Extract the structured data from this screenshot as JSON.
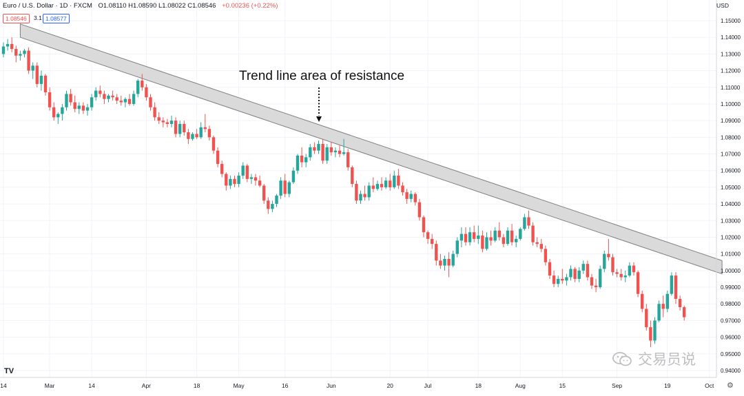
{
  "header": {
    "symbol": "Euro / U.S. Dollar · 1D · FXCM",
    "ohlc": "O1.08110 H1.08590 L1.08022 C1.08546",
    "change": "+0.00236 (+0.22%)",
    "sell_price": "1.08546",
    "spread": "3.1",
    "buy_price": "1.08577"
  },
  "currency": "USD",
  "watermark": "交易员说",
  "logo": "TV",
  "gear_icon": "gear-icon",
  "colors": {
    "up": "#26a69a",
    "down": "#ef5350",
    "band_fill": "#d3d3d3",
    "band_stroke": "#7f7f7f",
    "grid": "#f0f3fa",
    "text": "#131722"
  },
  "chart_data": {
    "type": "candlestick",
    "title": "Euro / U.S. Dollar · 1D · FXCM",
    "ylabel": "USD",
    "ylim": [
      0.935,
      1.16
    ],
    "y_ticks": [
      1.15,
      1.14,
      1.13,
      1.12,
      1.11,
      1.1,
      1.09,
      1.08,
      1.07,
      1.06,
      1.05,
      1.04,
      1.03,
      1.02,
      1.01,
      1.0,
      0.99,
      0.98,
      0.97,
      0.96,
      0.95,
      0.94
    ],
    "x_ticks": [
      {
        "label": "14",
        "day": 0
      },
      {
        "label": "Mar",
        "day": 11
      },
      {
        "label": "14",
        "day": 21
      },
      {
        "label": "Apr",
        "day": 34
      },
      {
        "label": "18",
        "day": 46
      },
      {
        "label": "May",
        "day": 56
      },
      {
        "label": "16",
        "day": 67
      },
      {
        "label": "Jun",
        "day": 78
      },
      {
        "label": "20",
        "day": 92
      },
      {
        "label": "Jul",
        "day": 101
      },
      {
        "label": "18",
        "day": 113
      },
      {
        "label": "Aug",
        "day": 123
      },
      {
        "label": "15",
        "day": 133
      },
      {
        "label": "Sep",
        "day": 146
      },
      {
        "label": "19",
        "day": 158
      },
      {
        "label": "Oct",
        "day": 168
      }
    ],
    "trend_band": {
      "label": "Trend line area of resistance",
      "start": {
        "day": 4,
        "upper": 1.148,
        "lower": 1.14
      },
      "end": {
        "day": 171,
        "upper": 1.006,
        "lower": 0.998
      }
    },
    "ohlc": [
      [
        1.13,
        1.137,
        1.128,
        1.1345
      ],
      [
        1.1345,
        1.139,
        1.132,
        1.136
      ],
      [
        1.136,
        1.14,
        1.131,
        1.133
      ],
      [
        1.133,
        1.135,
        1.125,
        1.129
      ],
      [
        1.129,
        1.132,
        1.126,
        1.13
      ],
      [
        1.13,
        1.133,
        1.128,
        1.132
      ],
      [
        1.132,
        1.134,
        1.118,
        1.12
      ],
      [
        1.12,
        1.125,
        1.115,
        1.123
      ],
      [
        1.123,
        1.125,
        1.11,
        1.112
      ],
      [
        1.112,
        1.12,
        1.108,
        1.117
      ],
      [
        1.117,
        1.118,
        1.105,
        1.107
      ],
      [
        1.107,
        1.11,
        1.096,
        1.098
      ],
      [
        1.098,
        1.101,
        1.09,
        1.092
      ],
      [
        1.092,
        1.095,
        1.088,
        1.094
      ],
      [
        1.094,
        1.1,
        1.09,
        1.098
      ],
      [
        1.098,
        1.108,
        1.096,
        1.106
      ],
      [
        1.106,
        1.109,
        1.099,
        1.101
      ],
      [
        1.101,
        1.105,
        1.095,
        1.097
      ],
      [
        1.097,
        1.101,
        1.094,
        1.099
      ],
      [
        1.099,
        1.101,
        1.094,
        1.096
      ],
      [
        1.096,
        1.1,
        1.093,
        1.098
      ],
      [
        1.098,
        1.106,
        1.096,
        1.104
      ],
      [
        1.104,
        1.11,
        1.102,
        1.108
      ],
      [
        1.108,
        1.111,
        1.104,
        1.106
      ],
      [
        1.106,
        1.108,
        1.1,
        1.103
      ],
      [
        1.103,
        1.106,
        1.101,
        1.105
      ],
      [
        1.105,
        1.108,
        1.102,
        1.104
      ],
      [
        1.104,
        1.106,
        1.1,
        1.102
      ],
      [
        1.102,
        1.105,
        1.099,
        1.101
      ],
      [
        1.101,
        1.104,
        1.098,
        1.103
      ],
      [
        1.103,
        1.106,
        1.099,
        1.1
      ],
      [
        1.1,
        1.108,
        1.099,
        1.106
      ],
      [
        1.106,
        1.115,
        1.104,
        1.114
      ],
      [
        1.114,
        1.118,
        1.108,
        1.11
      ],
      [
        1.11,
        1.112,
        1.102,
        1.104
      ],
      [
        1.104,
        1.106,
        1.096,
        1.098
      ],
      [
        1.098,
        1.101,
        1.09,
        1.092
      ],
      [
        1.092,
        1.095,
        1.088,
        1.09
      ],
      [
        1.09,
        1.092,
        1.086,
        1.089
      ],
      [
        1.089,
        1.091,
        1.086,
        1.088
      ],
      [
        1.088,
        1.093,
        1.086,
        1.09
      ],
      [
        1.09,
        1.092,
        1.08,
        1.082
      ],
      [
        1.082,
        1.09,
        1.08,
        1.088
      ],
      [
        1.088,
        1.09,
        1.081,
        1.083
      ],
      [
        1.083,
        1.085,
        1.076,
        1.079
      ],
      [
        1.079,
        1.083,
        1.078,
        1.082
      ],
      [
        1.082,
        1.085,
        1.079,
        1.08
      ],
      [
        1.08,
        1.089,
        1.079,
        1.086
      ],
      [
        1.086,
        1.094,
        1.083,
        1.085
      ],
      [
        1.085,
        1.087,
        1.078,
        1.08
      ],
      [
        1.08,
        1.081,
        1.07,
        1.072
      ],
      [
        1.072,
        1.074,
        1.062,
        1.064
      ],
      [
        1.064,
        1.066,
        1.056,
        1.058
      ],
      [
        1.058,
        1.059,
        1.048,
        1.051
      ],
      [
        1.051,
        1.057,
        1.049,
        1.055
      ],
      [
        1.055,
        1.057,
        1.05,
        1.052
      ],
      [
        1.052,
        1.059,
        1.05,
        1.057
      ],
      [
        1.057,
        1.065,
        1.055,
        1.063
      ],
      [
        1.063,
        1.064,
        1.053,
        1.055
      ],
      [
        1.055,
        1.058,
        1.052,
        1.056
      ],
      [
        1.056,
        1.058,
        1.051,
        1.054
      ],
      [
        1.054,
        1.057,
        1.05,
        1.051
      ],
      [
        1.051,
        1.052,
        1.04,
        1.042
      ],
      [
        1.042,
        1.044,
        1.034,
        1.037
      ],
      [
        1.037,
        1.042,
        1.035,
        1.04
      ],
      [
        1.04,
        1.046,
        1.038,
        1.045
      ],
      [
        1.045,
        1.056,
        1.043,
        1.054
      ],
      [
        1.054,
        1.058,
        1.044,
        1.046
      ],
      [
        1.046,
        1.054,
        1.044,
        1.053
      ],
      [
        1.053,
        1.062,
        1.052,
        1.06
      ],
      [
        1.06,
        1.07,
        1.058,
        1.069
      ],
      [
        1.069,
        1.074,
        1.062,
        1.065
      ],
      [
        1.065,
        1.07,
        1.062,
        1.068
      ],
      [
        1.068,
        1.076,
        1.066,
        1.074
      ],
      [
        1.074,
        1.077,
        1.07,
        1.072
      ],
      [
        1.072,
        1.078,
        1.07,
        1.076
      ],
      [
        1.076,
        1.079,
        1.064,
        1.066
      ],
      [
        1.066,
        1.076,
        1.064,
        1.074
      ],
      [
        1.074,
        1.077,
        1.069,
        1.071
      ],
      [
        1.071,
        1.074,
        1.068,
        1.072
      ],
      [
        1.072,
        1.075,
        1.068,
        1.07
      ],
      [
        1.07,
        1.079,
        1.069,
        1.071
      ],
      [
        1.071,
        1.073,
        1.06,
        1.062
      ],
      [
        1.062,
        1.063,
        1.05,
        1.052
      ],
      [
        1.052,
        1.054,
        1.04,
        1.042
      ],
      [
        1.042,
        1.048,
        1.04,
        1.046
      ],
      [
        1.046,
        1.051,
        1.042,
        1.044
      ],
      [
        1.044,
        1.053,
        1.042,
        1.051
      ],
      [
        1.051,
        1.056,
        1.047,
        1.049
      ],
      [
        1.049,
        1.054,
        1.048,
        1.052
      ],
      [
        1.052,
        1.056,
        1.048,
        1.05
      ],
      [
        1.05,
        1.056,
        1.049,
        1.054
      ],
      [
        1.054,
        1.058,
        1.048,
        1.05
      ],
      [
        1.05,
        1.06,
        1.049,
        1.057
      ],
      [
        1.057,
        1.061,
        1.049,
        1.051
      ],
      [
        1.051,
        1.053,
        1.045,
        1.047
      ],
      [
        1.047,
        1.049,
        1.04,
        1.043
      ],
      [
        1.043,
        1.048,
        1.041,
        1.046
      ],
      [
        1.046,
        1.047,
        1.039,
        1.041
      ],
      [
        1.041,
        1.043,
        1.03,
        1.032
      ],
      [
        1.032,
        1.033,
        1.02,
        1.023
      ],
      [
        1.023,
        1.024,
        1.016,
        1.019
      ],
      [
        1.019,
        1.022,
        1.013,
        1.016
      ],
      [
        1.016,
        1.018,
        1.003,
        1.006
      ],
      [
        1.006,
        1.01,
        1.001,
        1.003
      ],
      [
        1.003,
        1.009,
        1.0,
        1.007
      ],
      [
        1.007,
        1.011,
        0.996,
        1.003
      ],
      [
        1.003,
        1.012,
        1.002,
        1.01
      ],
      [
        1.01,
        1.02,
        1.008,
        1.018
      ],
      [
        1.018,
        1.026,
        1.014,
        1.022
      ],
      [
        1.022,
        1.026,
        1.015,
        1.017
      ],
      [
        1.017,
        1.026,
        1.015,
        1.023
      ],
      [
        1.023,
        1.027,
        1.017,
        1.019
      ],
      [
        1.019,
        1.027,
        1.016,
        1.021
      ],
      [
        1.021,
        1.024,
        1.011,
        1.013
      ],
      [
        1.013,
        1.023,
        1.012,
        1.02
      ],
      [
        1.02,
        1.024,
        1.015,
        1.018
      ],
      [
        1.018,
        1.026,
        1.017,
        1.024
      ],
      [
        1.024,
        1.029,
        1.018,
        1.02
      ],
      [
        1.02,
        1.022,
        1.014,
        1.016
      ],
      [
        1.016,
        1.026,
        1.015,
        1.024
      ],
      [
        1.024,
        1.028,
        1.015,
        1.017
      ],
      [
        1.017,
        1.021,
        1.014,
        1.019
      ],
      [
        1.019,
        1.026,
        1.018,
        1.025
      ],
      [
        1.025,
        1.034,
        1.024,
        1.032
      ],
      [
        1.032,
        1.036,
        1.025,
        1.027
      ],
      [
        1.027,
        1.029,
        1.015,
        1.017
      ],
      [
        1.017,
        1.02,
        1.014,
        1.016
      ],
      [
        1.016,
        1.019,
        1.011,
        1.013
      ],
      [
        1.013,
        1.015,
        1.003,
        1.005
      ],
      [
        1.005,
        1.007,
        0.995,
        0.997
      ],
      [
        0.997,
        1.0,
        0.99,
        0.992
      ],
      [
        0.992,
        0.997,
        0.99,
        0.995
      ],
      [
        0.995,
        1.001,
        0.992,
        0.994
      ],
      [
        0.994,
        0.998,
        0.991,
        0.996
      ],
      [
        0.996,
        1.003,
        0.994,
        1.001
      ],
      [
        1.001,
        1.002,
        0.993,
        0.995
      ],
      [
        0.995,
        1.002,
        0.993,
        1.0
      ],
      [
        1.0,
        1.006,
        0.998,
        1.004
      ],
      [
        1.004,
        1.006,
        0.994,
        0.996
      ],
      [
        0.996,
        0.998,
        0.989,
        0.991
      ],
      [
        0.991,
        0.995,
        0.987,
        0.99
      ],
      [
        0.99,
        1.003,
        0.989,
        1.001
      ],
      [
        1.001,
        1.012,
        0.999,
        1.01
      ],
      [
        1.01,
        1.019,
        1.006,
        1.008
      ],
      [
        1.008,
        1.01,
        0.997,
        0.999
      ],
      [
        0.999,
        1.001,
        0.996,
        0.998
      ],
      [
        0.998,
        1.001,
        0.994,
        0.996
      ],
      [
        0.996,
        1.0,
        0.993,
        0.997
      ],
      [
        0.997,
        1.005,
        0.996,
        1.003
      ],
      [
        1.003,
        1.005,
        0.997,
        0.999
      ],
      [
        0.999,
        1.0,
        0.984,
        0.986
      ],
      [
        0.986,
        0.988,
        0.975,
        0.977
      ],
      [
        0.977,
        0.98,
        0.964,
        0.966
      ],
      [
        0.966,
        0.97,
        0.954,
        0.958
      ],
      [
        0.958,
        0.972,
        0.956,
        0.97
      ],
      [
        0.97,
        0.982,
        0.969,
        0.98
      ],
      [
        0.98,
        0.985,
        0.972,
        0.977
      ],
      [
        0.977,
        0.988,
        0.975,
        0.986
      ],
      [
        0.986,
        0.999,
        0.985,
        0.997
      ],
      [
        0.997,
        0.999,
        0.98,
        0.983
      ],
      [
        0.983,
        0.985,
        0.976,
        0.978
      ],
      [
        0.978,
        0.979,
        0.97,
        0.972
      ]
    ]
  }
}
